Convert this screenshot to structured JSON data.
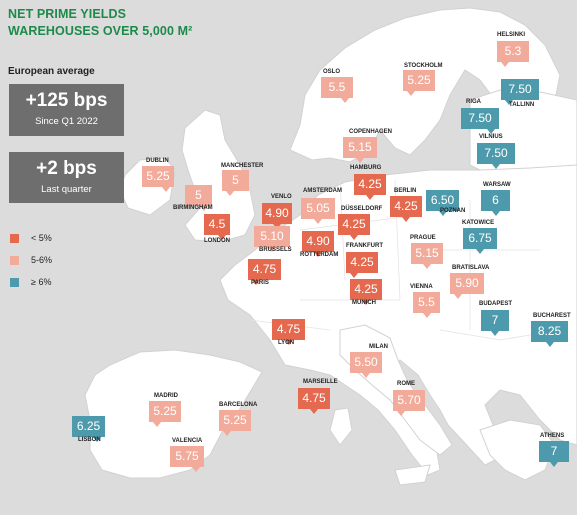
{
  "title": {
    "line1": "NET PRIME YIELDS",
    "line2": "WAREHOUSES OVER 5,000 M²"
  },
  "european_average": {
    "label": "European average",
    "change_since": {
      "value": "+125 bps",
      "caption": "Since Q1 2022"
    },
    "change_quarter": {
      "value": "+2 bps",
      "caption": "Last quarter"
    }
  },
  "legend": [
    {
      "label": "< 5%",
      "color": "#e4694e"
    },
    {
      "label": "5-6%",
      "color": "#f2ab9a"
    },
    {
      "label": "≥ 6%",
      "color": "#4e9aad"
    }
  ],
  "colors": {
    "title_green": "#1d8a4a",
    "land": "#ffffff",
    "sea": "#dcdcdc",
    "stat_box": "#6e6e6e"
  },
  "cities": [
    {
      "name": "HELSINKI",
      "yield": "5.3",
      "band": "mid"
    },
    {
      "name": "OSLO",
      "yield": "5.5",
      "band": "mid"
    },
    {
      "name": "STOCKHOLM",
      "yield": "5.25",
      "band": "mid"
    },
    {
      "name": "TALLINN",
      "yield": "7.50",
      "band": "high"
    },
    {
      "name": "RIGA",
      "yield": "7.50",
      "band": "high"
    },
    {
      "name": "VILNIUS",
      "yield": "7.50",
      "band": "high"
    },
    {
      "name": "COPENHAGEN",
      "yield": "5.15",
      "band": "mid"
    },
    {
      "name": "DUBLIN",
      "yield": "5.25",
      "band": "mid"
    },
    {
      "name": "MANCHESTER",
      "yield": "5",
      "band": "mid"
    },
    {
      "name": "BIRMINGHAM",
      "yield": "5",
      "band": "mid"
    },
    {
      "name": "HAMBURG",
      "yield": "4.25",
      "band": "low"
    },
    {
      "name": "VENLO",
      "yield": "4.90",
      "band": "low"
    },
    {
      "name": "AMSTERDAM",
      "yield": "5.05",
      "band": "mid"
    },
    {
      "name": "BERLIN",
      "yield": "4.25",
      "band": "low"
    },
    {
      "name": "POZNAN",
      "yield": "6.50",
      "band": "high"
    },
    {
      "name": "WARSAW",
      "yield": "6",
      "band": "high"
    },
    {
      "name": "DÜSSELDORF",
      "yield": "4.25",
      "band": "low"
    },
    {
      "name": "LONDON",
      "yield": "4.5",
      "band": "low"
    },
    {
      "name": "BRUSSELS",
      "yield": "5.10",
      "band": "mid"
    },
    {
      "name": "ROTTERDAM",
      "yield": "4.90",
      "band": "low"
    },
    {
      "name": "FRANKFURT",
      "yield": "4.25",
      "band": "low"
    },
    {
      "name": "PRAGUE",
      "yield": "5.15",
      "band": "mid"
    },
    {
      "name": "KATOWICE",
      "yield": "6.75",
      "band": "high"
    },
    {
      "name": "PARIS",
      "yield": "4.75",
      "band": "low"
    },
    {
      "name": "BRATISLAVA",
      "yield": "5.90",
      "band": "mid"
    },
    {
      "name": "MUNICH",
      "yield": "4.25",
      "band": "low"
    },
    {
      "name": "VIENNA",
      "yield": "5.5",
      "band": "mid"
    },
    {
      "name": "BUDAPEST",
      "yield": "7",
      "band": "high"
    },
    {
      "name": "BUCHAREST",
      "yield": "8.25",
      "band": "high"
    },
    {
      "name": "LYON",
      "yield": "4.75",
      "band": "low"
    },
    {
      "name": "MILAN",
      "yield": "5.50",
      "band": "mid"
    },
    {
      "name": "MARSEILLE",
      "yield": "4.75",
      "band": "low"
    },
    {
      "name": "ROME",
      "yield": "5.70",
      "band": "mid"
    },
    {
      "name": "MADRID",
      "yield": "5.25",
      "band": "mid"
    },
    {
      "name": "BARCELONA",
      "yield": "5.25",
      "band": "mid"
    },
    {
      "name": "LISBON",
      "yield": "6.25",
      "band": "high"
    },
    {
      "name": "VALENCIA",
      "yield": "5.75",
      "band": "mid"
    },
    {
      "name": "ATHENS",
      "yield": "7",
      "band": "high"
    }
  ]
}
